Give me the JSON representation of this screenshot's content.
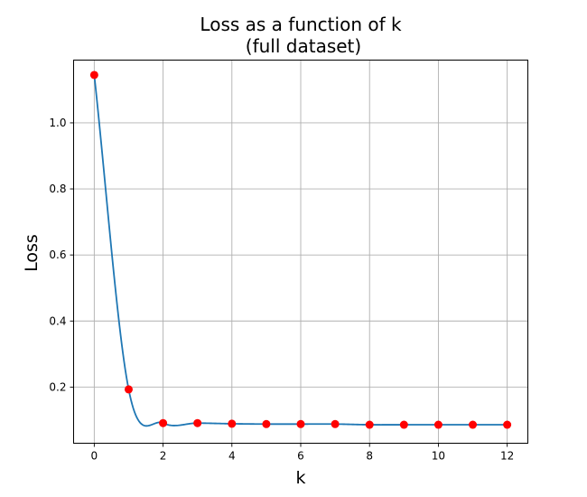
{
  "chart_data": {
    "type": "line",
    "title_line1": "Loss as a function of k",
    "title_line2": "(full dataset)",
    "xlabel": "k",
    "ylabel": "Loss",
    "xlim": [
      -0.6,
      12.6
    ],
    "ylim": [
      0.03,
      1.19
    ],
    "xticks": [
      0,
      2,
      4,
      6,
      8,
      10,
      12
    ],
    "yticks": [
      0.2,
      0.4,
      0.6,
      0.8,
      1.0
    ],
    "ytick_labels": [
      "0.2",
      "0.4",
      "0.6",
      "0.8",
      "1.0"
    ],
    "grid": true,
    "series": [
      {
        "x": [
          0,
          1,
          2,
          3,
          4,
          5,
          6,
          7,
          8,
          9,
          10,
          11,
          12
        ],
        "y": [
          1.145,
          0.193,
          0.091,
          0.091,
          0.089,
          0.088,
          0.088,
          0.088,
          0.086,
          0.086,
          0.086,
          0.086,
          0.086
        ],
        "line_color": "#1f77b4",
        "marker_color": "#ff0000"
      }
    ]
  }
}
